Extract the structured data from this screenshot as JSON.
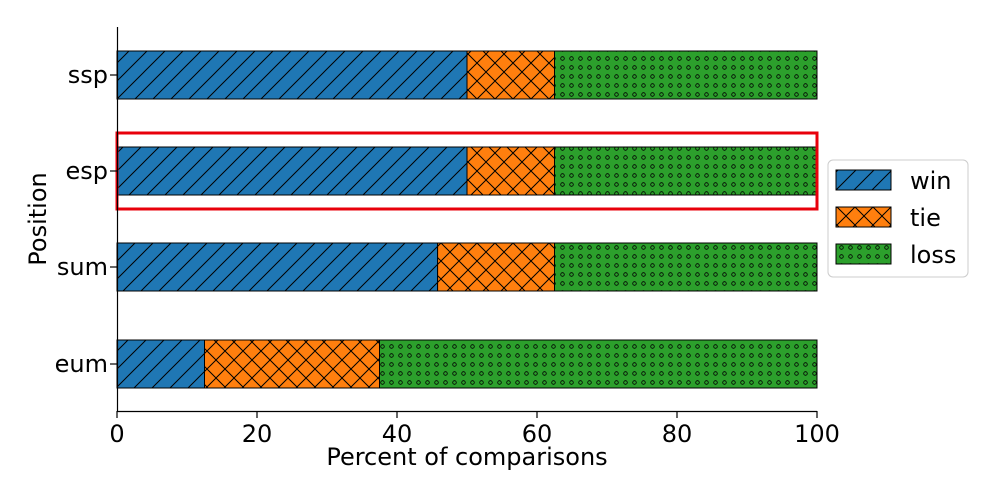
{
  "chart_data": {
    "type": "bar",
    "orientation": "horizontal",
    "stacked": true,
    "categories": [
      "ssp",
      "esp",
      "sum",
      "eum"
    ],
    "series": [
      {
        "name": "win",
        "values": [
          50,
          50,
          45.8,
          12.5
        ],
        "color": "#1f77b4",
        "pattern": "hatch-diagonal"
      },
      {
        "name": "tie",
        "values": [
          12.5,
          12.5,
          16.7,
          25
        ],
        "color": "#ff7f0e",
        "pattern": "hatch-cross"
      },
      {
        "name": "loss",
        "values": [
          37.5,
          37.5,
          37.5,
          62.5
        ],
        "color": "#2ca02c",
        "pattern": "dots"
      }
    ],
    "xlabel": "Percent of comparisons",
    "ylabel": "Position",
    "xlim": [
      0,
      100
    ],
    "xticks": [
      0,
      20,
      40,
      60,
      80,
      100
    ],
    "highlighted_category": "esp",
    "highlight_color": "#e8000b",
    "legend_placement": "center-right",
    "grid": false
  }
}
